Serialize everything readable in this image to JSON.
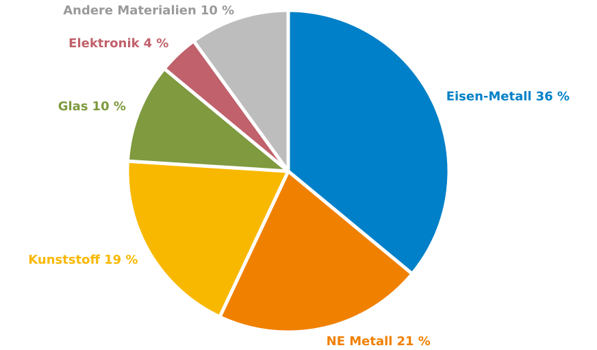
{
  "chart_data": {
    "type": "pie",
    "categories": [
      "Eisen-Metall",
      "NE Metall",
      "Kunststoff",
      "Glas",
      "Elektronik",
      "Andere Materialien"
    ],
    "values": [
      36,
      21,
      19,
      10,
      4,
      10
    ],
    "value_labels": [
      "36 %",
      "21 %",
      "19 %",
      "10 %",
      "4 %",
      "10 %"
    ],
    "colors": [
      "#0080c8",
      "#f08000",
      "#f9b800",
      "#7f9a3f",
      "#c0616b",
      "#bdbdbd"
    ],
    "label_colors": [
      "#0080c8",
      "#f08000",
      "#f9b800",
      "#7f9a3f",
      "#c0616b",
      "#9a9a9a"
    ]
  }
}
